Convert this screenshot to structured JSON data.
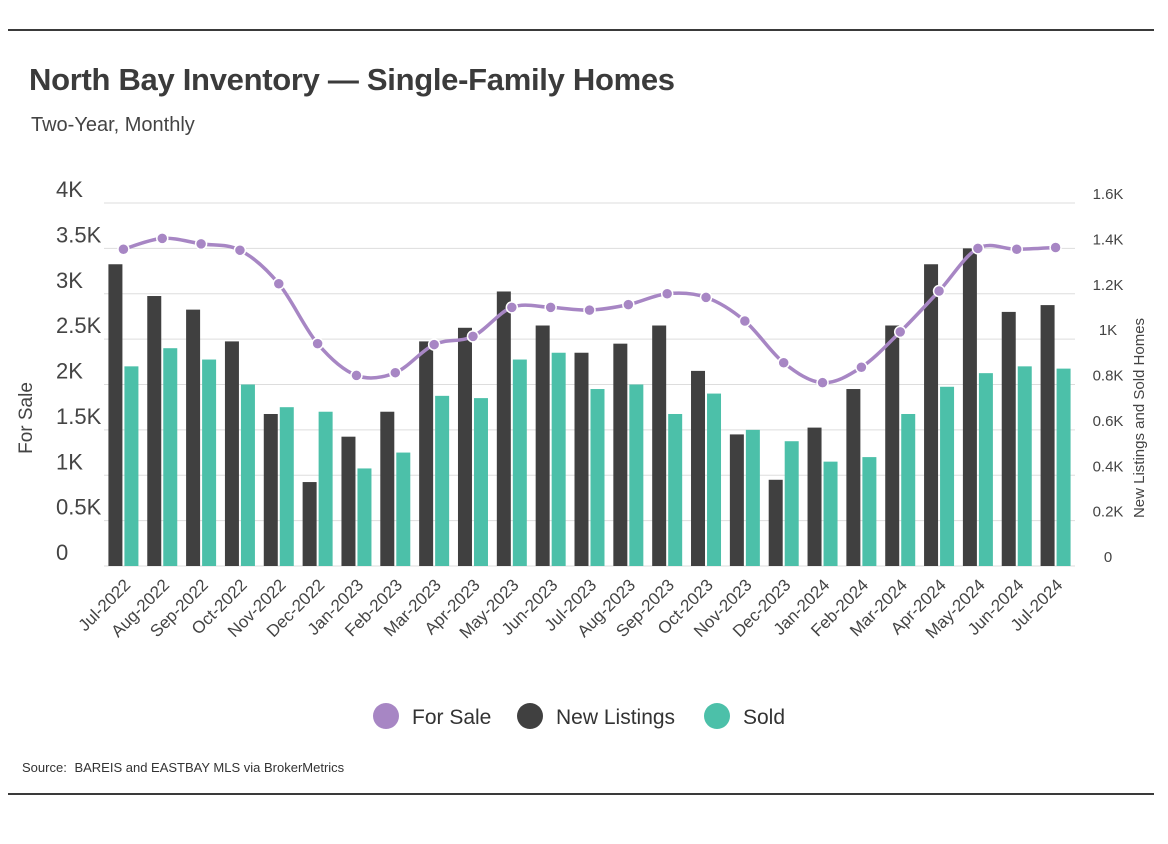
{
  "header": {
    "title": "North Bay Inventory — Single-Family Homes",
    "subtitle": "Two-Year, Monthly"
  },
  "footer": {
    "source_label": "Source:",
    "source_text": "BAREIS and EASTBAY MLS via BrokerMetrics"
  },
  "colors": {
    "for_sale": "#a786c4",
    "new_listings": "#404040",
    "sold": "#4cc0a9",
    "grid": "#dddddd"
  },
  "chart_data": {
    "type": "bar",
    "title": "North Bay Inventory — Single-Family Homes",
    "subtitle": "Two-Year, Monthly",
    "categories": [
      "Jul-2022",
      "Aug-2022",
      "Sep-2022",
      "Oct-2022",
      "Nov-2022",
      "Dec-2022",
      "Jan-2023",
      "Feb-2023",
      "Mar-2023",
      "Apr-2023",
      "May-2023",
      "Jun-2023",
      "Jul-2023",
      "Aug-2023",
      "Sep-2023",
      "Oct-2023",
      "Nov-2023",
      "Dec-2023",
      "Jan-2024",
      "Feb-2024",
      "Mar-2024",
      "Apr-2024",
      "May-2024",
      "Jun-2024",
      "Jul-2024"
    ],
    "y_left": {
      "label": "For Sale",
      "ylim": [
        0,
        4000
      ],
      "ticks": [
        0,
        500,
        1000,
        1500,
        2000,
        2500,
        3000,
        3500,
        4000
      ],
      "tick_labels": [
        "0",
        "0.5K",
        "1K",
        "1.5K",
        "2K",
        "2.5K",
        "3K",
        "3.5K",
        "4K"
      ]
    },
    "y_right": {
      "label": "New Listings and Sold Homes",
      "ylim": [
        0,
        1600
      ],
      "ticks": [
        0,
        200,
        400,
        600,
        800,
        1000,
        1200,
        1400,
        1600
      ],
      "tick_labels": [
        "0",
        "0.2K",
        "0.4K",
        "0.6K",
        "0.8K",
        "1K",
        "1.2K",
        "1.4K",
        "1.6K"
      ]
    },
    "grid": true,
    "legend_position": "bottom-center",
    "series": [
      {
        "name": "For Sale",
        "type": "line",
        "axis": "left",
        "values": [
          3490,
          3610,
          3550,
          3480,
          3110,
          2450,
          2100,
          2130,
          2440,
          2530,
          2850,
          2850,
          2820,
          2880,
          3000,
          2960,
          2700,
          2240,
          2020,
          2190,
          2580,
          3030,
          3500,
          3490,
          3510
        ]
      },
      {
        "name": "New Listings",
        "type": "bar",
        "axis": "right",
        "values": [
          1330,
          1190,
          1130,
          990,
          670,
          370,
          570,
          680,
          990,
          1050,
          1210,
          1060,
          940,
          980,
          1060,
          860,
          580,
          380,
          610,
          780,
          1060,
          1330,
          1400,
          1120,
          1150
        ]
      },
      {
        "name": "Sold",
        "type": "bar",
        "axis": "right",
        "values": [
          880,
          960,
          910,
          800,
          700,
          680,
          430,
          500,
          750,
          740,
          910,
          940,
          780,
          800,
          670,
          760,
          600,
          550,
          460,
          480,
          670,
          790,
          850,
          880,
          870
        ]
      }
    ]
  }
}
